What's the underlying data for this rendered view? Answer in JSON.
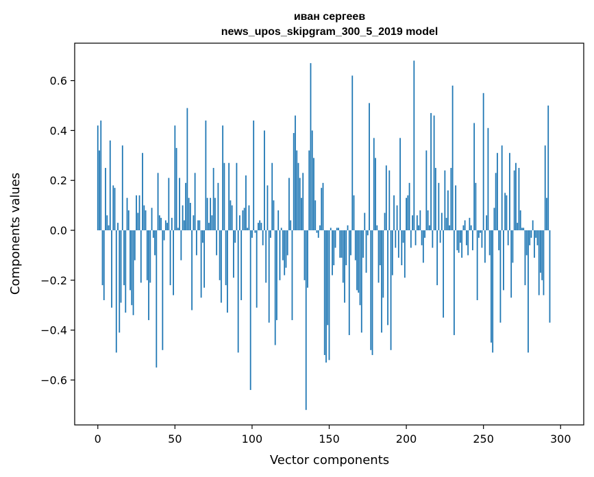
{
  "chart_data": {
    "type": "bar",
    "title": "иван сергеев",
    "subtitle": "news_upos_skipgram_300_5_2019 model",
    "xlabel": "Vector components",
    "ylabel": "Components values",
    "xlim": [
      -15,
      315
    ],
    "ylim": [
      -0.78,
      0.75
    ],
    "xticks": [
      0,
      50,
      100,
      150,
      200,
      250,
      300
    ],
    "yticks": [
      -0.6,
      -0.4,
      -0.2,
      0.0,
      0.2,
      0.4,
      0.6
    ],
    "ytick_labels": [
      "−0.6",
      "−0.4",
      "−0.2",
      "0.0",
      "0.2",
      "0.4",
      "0.6"
    ],
    "grid": false,
    "bar_color": "#1f77b4",
    "x_start": 0,
    "values": [
      0.42,
      0.32,
      0.44,
      -0.22,
      -0.28,
      0.25,
      0.06,
      0.02,
      0.36,
      -0.31,
      0.18,
      0.17,
      -0.49,
      0.03,
      -0.41,
      -0.29,
      0.34,
      -0.22,
      -0.33,
      0.13,
      0.08,
      -0.24,
      -0.3,
      -0.34,
      -0.12,
      0.14,
      0.07,
      0.14,
      -0.21,
      0.31,
      0.1,
      0.08,
      -0.2,
      -0.36,
      -0.21,
      0.09,
      -0.03,
      -0.1,
      -0.55,
      0.23,
      0.06,
      0.05,
      -0.48,
      -0.04,
      0.04,
      0.03,
      0.21,
      -0.22,
      0.05,
      -0.26,
      0.42,
      0.33,
      0.01,
      0.21,
      -0.12,
      0.1,
      0.04,
      0.19,
      0.49,
      0.13,
      0.11,
      -0.32,
      0.06,
      0.23,
      -0.1,
      0.04,
      0.04,
      -0.27,
      -0.05,
      -0.23,
      0.44,
      0.13,
      0.03,
      0.13,
      0.06,
      0.25,
      0.13,
      -0.1,
      0.19,
      -0.2,
      -0.29,
      0.42,
      0.27,
      -0.22,
      -0.33,
      0.27,
      0.12,
      0.1,
      -0.19,
      -0.05,
      0.27,
      -0.49,
      0.06,
      -0.28,
      0.08,
      0.09,
      0.22,
      0.01,
      0.1,
      -0.64,
      -0.03,
      0.44,
      -0.01,
      -0.31,
      0.03,
      0.04,
      0.03,
      -0.06,
      0.4,
      -0.21,
      0.18,
      -0.37,
      -0.03,
      0.27,
      0.12,
      -0.46,
      -0.36,
      0.08,
      -0.2,
      0.01,
      -0.12,
      -0.18,
      -0.15,
      -0.1,
      0.21,
      0.04,
      -0.36,
      0.39,
      0.46,
      0.32,
      0.27,
      0.21,
      0.13,
      0.23,
      -0.2,
      -0.72,
      -0.23,
      0.32,
      0.67,
      0.4,
      0.29,
      0.12,
      -0.01,
      -0.03,
      0.02,
      0.17,
      0.19,
      -0.5,
      -0.53,
      -0.38,
      -0.52,
      0.01,
      -0.18,
      -0.14,
      -0.07,
      0.01,
      0.01,
      -0.11,
      -0.11,
      -0.21,
      -0.29,
      -0.14,
      0.02,
      -0.42,
      -0.1,
      0.62,
      0.14,
      -0.12,
      -0.24,
      -0.25,
      -0.3,
      -0.41,
      -0.11,
      0.07,
      -0.17,
      -0.02,
      0.51,
      -0.48,
      -0.5,
      0.37,
      0.29,
      0.02,
      -0.21,
      -0.14,
      -0.41,
      -0.27,
      0.07,
      0.26,
      -0.38,
      0.24,
      -0.48,
      -0.18,
      0.14,
      -0.07,
      0.1,
      -0.11,
      0.37,
      -0.14,
      -0.05,
      -0.19,
      0.13,
      0.14,
      0.19,
      -0.07,
      0.06,
      0.68,
      -0.06,
      0.06,
      0.02,
      0.08,
      -0.06,
      -0.13,
      -0.03,
      0.32,
      0.08,
      0.02,
      0.47,
      -0.07,
      0.46,
      0.25,
      -0.22,
      0.19,
      -0.05,
      0.07,
      -0.35,
      0.24,
      0.05,
      0.16,
      0.02,
      0.25,
      0.58,
      -0.42,
      0.18,
      -0.08,
      -0.09,
      -0.05,
      -0.11,
      0.02,
      0.04,
      -0.06,
      -0.1,
      0.05,
      0.02,
      -0.08,
      0.43,
      0.19,
      -0.28,
      -0.03,
      -0.01,
      -0.07,
      0.55,
      -0.13,
      0.06,
      0.41,
      -0.1,
      -0.45,
      -0.49,
      0.09,
      0.23,
      0.31,
      -0.08,
      -0.37,
      0.34,
      -0.24,
      0.15,
      0.14,
      -0.06,
      0.31,
      -0.27,
      -0.13,
      0.24,
      0.27,
      0.03,
      0.25,
      0.08,
      0.01,
      0.01,
      -0.22,
      -0.1,
      -0.49,
      -0.06,
      -0.03,
      0.04,
      -0.11,
      -0.03,
      -0.06,
      -0.26,
      -0.17,
      -0.2,
      -0.26,
      0.34,
      0.13,
      0.5,
      -0.37
    ]
  }
}
